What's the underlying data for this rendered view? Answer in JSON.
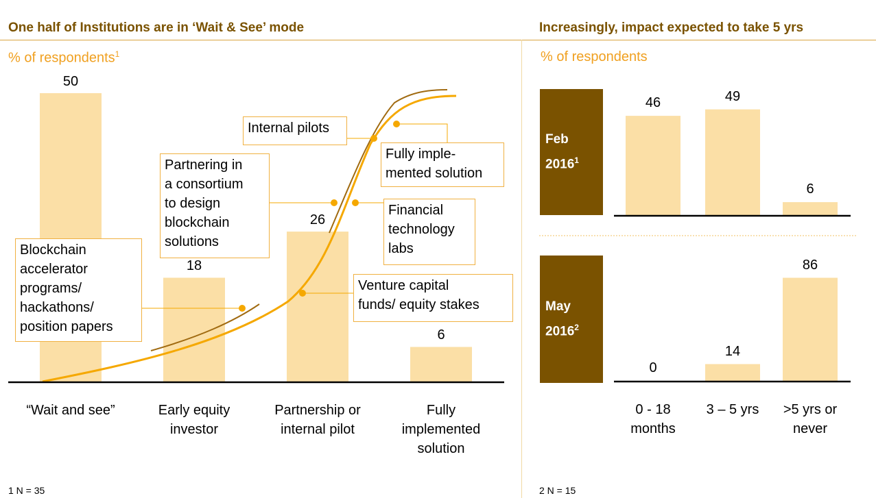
{
  "left": {
    "title": "One half of Institutions are in ‘Wait & See’ mode",
    "subtitle": "% of respondents",
    "subtitle_sup": "1",
    "footnote": "1 N = 35"
  },
  "right": {
    "title": "Increasingly, impact expected to take 5 yrs",
    "subtitle": "% of respondents",
    "footnote": "2 N = 15",
    "panels": [
      {
        "label": "Feb\n2016",
        "sup": "1"
      },
      {
        "label": "May\n2016",
        "sup": "2"
      }
    ]
  },
  "callouts": {
    "internal_pilots": "Internal pilots",
    "fully_implemented": "Fully imple-\nmented solution",
    "partnering": "Partnering in\na consortium\nto design\nblockchain\nsolutions",
    "fintech_labs": "Financial\ntechnology\nlabs",
    "blockchain_accel": "Blockchain\naccelerator\nprograms/\nhackathons/\nposition papers",
    "venture_capital": "Venture capital\nfunds/ equity stakes"
  },
  "colors": {
    "bar": "#fbdfa6",
    "curve": "#f5a800",
    "curve_dark": "#a06a10",
    "period_bg": "#7a5200",
    "title": "#7a5200",
    "subtitle": "#f0a020"
  },
  "chart_data": [
    {
      "type": "bar",
      "categories": [
        "“Wait and see”",
        "Early equity\ninvestor",
        "Partnership or\ninternal pilot",
        "Fully\nimplemented\nsolution"
      ],
      "values": [
        50,
        18,
        26,
        6
      ],
      "ylim": [
        0,
        50
      ]
    },
    {
      "type": "bar",
      "categories": [
        "0 - 18\nmonths",
        "3 – 5 yrs",
        ">5 yrs or\nnever"
      ],
      "series": [
        {
          "name": "Feb 2016",
          "values": [
            46,
            49,
            6
          ]
        },
        {
          "name": "May 2016",
          "values": [
            0,
            14,
            86
          ]
        }
      ]
    }
  ]
}
